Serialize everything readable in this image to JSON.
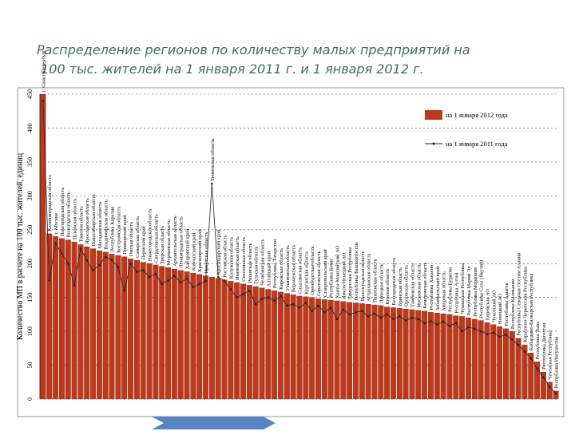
{
  "chart_data": {
    "type": "bar",
    "title": "Распределение регионов по количеству малых предприятий на 100 тыс. жителей на 1 января 2011 г. и 1 января 2012 г.",
    "y_label": "Количество МП в расчете на 100 тыс. жителей, единиц",
    "categories": [
      "г. Санкт-Петербург",
      "Калининградская область",
      "г. Москва",
      "Новгородская область",
      "Вологодская область",
      "Псковская область",
      "Томская область",
      "Ярославская область",
      "Новосибирская область",
      "Магаданская область",
      "Владимирская область",
      "Республика Карелия",
      "Костромская область",
      "Приморский край",
      "Омская область",
      "Самарская область",
      "Пермский край",
      "Нижегородская область",
      "Свердловская область",
      "Тверская область",
      "Мурманская область",
      "Архангельская область",
      "Ленинградская область",
      "Хабаровский край",
      "Камчатский край",
      "Красноярский край",
      "Иркутская область",
      "Тюменская область",
      "Краснодарский край",
      "Ростовская область",
      "Калужская область",
      "Ивановская область",
      "Смоленская область",
      "Рязанская область",
      "Тульская область",
      "Челябинская область",
      "Алтайский край",
      "Республика Татарстан",
      "Кировская область",
      "Ульяновская область",
      "Воронежская область",
      "Сахалинская область",
      "Курганская область",
      "Оренбургская область",
      "Саратовская область",
      "Ставропольский край",
      "Республика Коми",
      "Ханты-Мансийский АО",
      "Ямало-Ненецкий АО",
      "Удмуртская Республика",
      "Республика Башкортостан",
      "Волгоградская область",
      "Астраханская область",
      "Пензенская область",
      "Липецкая область",
      "Курская область",
      "Белгородская область",
      "Брянская область",
      "Орловская область",
      "Тамбовская область",
      "Московская область",
      "Кемеровская область",
      "Республика Хакасия",
      "Забайкальский край",
      "Амурская область",
      "Республика Бурятия",
      "Республика Алтай",
      "Чувашская Республика",
      "Республика Марий Эл",
      "Республика Мордовия",
      "Республика Саха (Якутия)",
      "Еврейская АО",
      "Чукотский АО",
      "Ненецкий АО",
      "Республика Адыгея",
      "Республика Калмыкия",
      "Республика Северная Осетия-Алания",
      "Карачаево-Черкесская Республика",
      "Кабардино-Балкарская Республика",
      "Республика Тыва",
      "Республика Дагестан",
      "Чеченская Республика",
      "Республика Ингушетия"
    ],
    "series": [
      {
        "name": "на 1 января 2012 года",
        "color": "#c0381a",
        "values": [
          452,
          244,
          240,
          237,
          235,
          232,
          228,
          225,
          222,
          219,
          217,
          214,
          212,
          210,
          207,
          205,
          202,
          200,
          198,
          196,
          194,
          192,
          190,
          188,
          186,
          184,
          182,
          180,
          178,
          176,
          174,
          172,
          170,
          168,
          166,
          164,
          162,
          160,
          158,
          156,
          154,
          152,
          151,
          150,
          148,
          147,
          146,
          145,
          144,
          143,
          142,
          141,
          140,
          139,
          138,
          136,
          135,
          134,
          133,
          132,
          131,
          130,
          128,
          127,
          126,
          125,
          123,
          122,
          120,
          118,
          116,
          113,
          110,
          107,
          104,
          100,
          90,
          80,
          68,
          55,
          40,
          25,
          12
        ]
      },
      {
        "name": "на 1 января 2011 года",
        "color": "#222222",
        "values": [
          440,
          175,
          230,
          215,
          200,
          168,
          222,
          205,
          190,
          198,
          210,
          205,
          195,
          160,
          200,
          188,
          190,
          180,
          185,
          170,
          175,
          182,
          172,
          178,
          165,
          170,
          174,
          318,
          180,
          175,
          162,
          150,
          155,
          160,
          140,
          148,
          150,
          145,
          152,
          138,
          140,
          135,
          142,
          130,
          138,
          128,
          135,
          118,
          132,
          125,
          128,
          130,
          122,
          126,
          120,
          125,
          118,
          122,
          116,
          120,
          118,
          112,
          115,
          110,
          114,
          108,
          112,
          100,
          106,
          104,
          100,
          96,
          98,
          92,
          95,
          88,
          80,
          70,
          60,
          45,
          32,
          18,
          8
        ]
      }
    ],
    "ylim": [
      0,
      450
    ],
    "yticks": [
      0,
      50,
      100,
      150,
      200,
      250,
      300,
      350,
      400,
      450
    ],
    "grid": true,
    "legend": "top-right"
  }
}
